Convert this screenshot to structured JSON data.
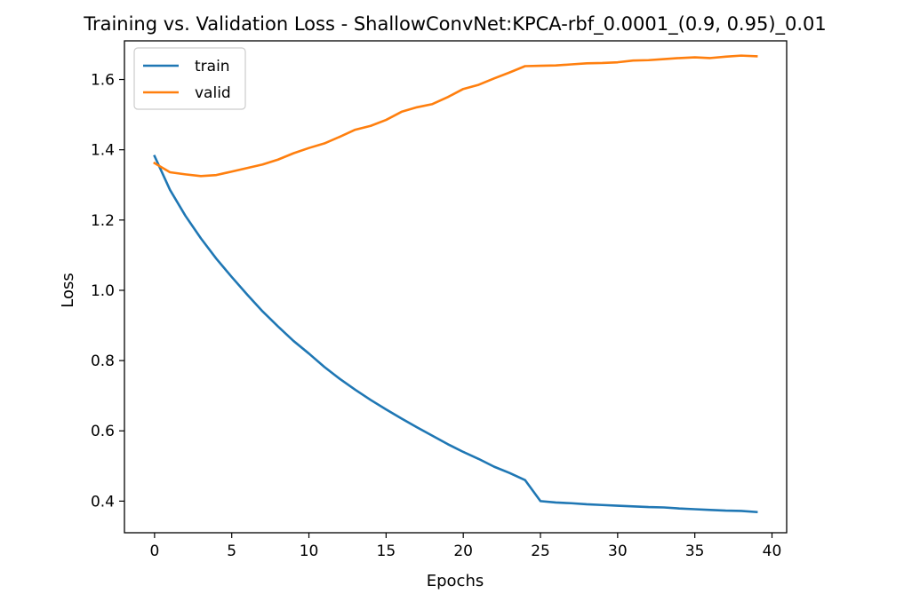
{
  "chart_data": {
    "type": "line",
    "title": "Training vs. Validation Loss - ShallowConvNet:KPCA-rbf_0.0001_(0.9, 0.95)_0.01",
    "xlabel": "Epochs",
    "ylabel": "Loss",
    "xlim": [
      -1.95,
      40.95
    ],
    "ylim": [
      0.31,
      1.71
    ],
    "xticks": [
      0,
      5,
      10,
      15,
      20,
      25,
      30,
      35,
      40
    ],
    "yticks": [
      0.4,
      0.6,
      0.8,
      1.0,
      1.2,
      1.4,
      1.6
    ],
    "xtick_labels": [
      "0",
      "5",
      "10",
      "15",
      "20",
      "25",
      "30",
      "35",
      "40"
    ],
    "ytick_labels": [
      "0.4",
      "0.6",
      "0.8",
      "1.0",
      "1.2",
      "1.4",
      "1.6"
    ],
    "grid": false,
    "legend_position": "upper-left",
    "x": [
      0,
      1,
      2,
      3,
      4,
      5,
      6,
      7,
      8,
      9,
      10,
      11,
      12,
      13,
      14,
      15,
      16,
      17,
      18,
      19,
      20,
      21,
      22,
      23,
      24,
      25,
      26,
      27,
      28,
      29,
      30,
      31,
      32,
      33,
      34,
      35,
      36,
      37,
      38,
      39
    ],
    "series": [
      {
        "name": "train",
        "color": "#1f77b4",
        "values": [
          1.382,
          1.286,
          1.212,
          1.148,
          1.09,
          1.038,
          0.988,
          0.94,
          0.897,
          0.856,
          0.82,
          0.782,
          0.748,
          0.717,
          0.688,
          0.661,
          0.635,
          0.61,
          0.586,
          0.562,
          0.54,
          0.52,
          0.498,
          0.48,
          0.46,
          0.4,
          0.396,
          0.394,
          0.391,
          0.389,
          0.387,
          0.385,
          0.383,
          0.382,
          0.379,
          0.377,
          0.375,
          0.373,
          0.372,
          0.369
        ]
      },
      {
        "name": "valid",
        "color": "#ff7f0e",
        "values": [
          1.362,
          1.336,
          1.33,
          1.325,
          1.328,
          1.338,
          1.348,
          1.358,
          1.372,
          1.39,
          1.405,
          1.418,
          1.437,
          1.457,
          1.468,
          1.485,
          1.508,
          1.521,
          1.53,
          1.55,
          1.573,
          1.585,
          1.603,
          1.62,
          1.638,
          1.639,
          1.64,
          1.643,
          1.646,
          1.647,
          1.649,
          1.654,
          1.655,
          1.658,
          1.661,
          1.663,
          1.661,
          1.665,
          1.668,
          1.666
        ]
      }
    ]
  }
}
